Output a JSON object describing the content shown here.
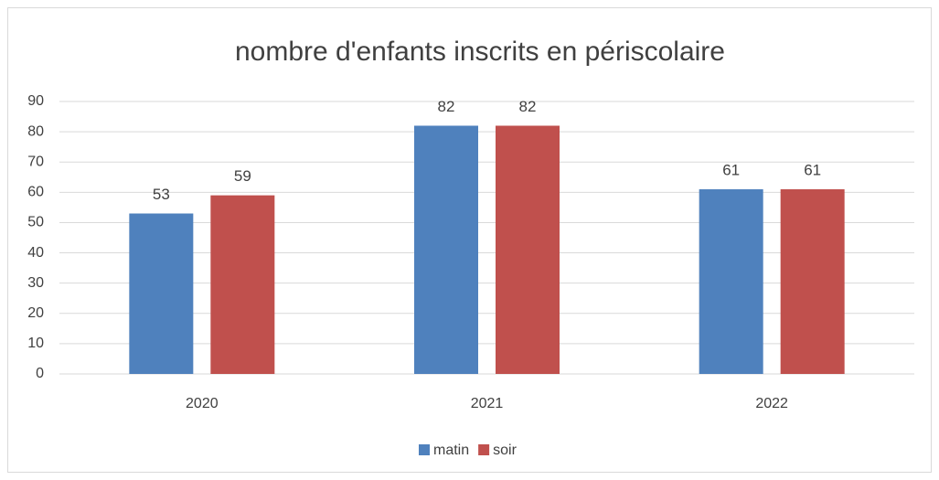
{
  "chart_data": {
    "type": "bar",
    "title": "nombre d'enfants inscrits en périscolaire",
    "categories": [
      "2020",
      "2021",
      "2022"
    ],
    "series": [
      {
        "name": "matin",
        "color": "#4f81bd",
        "values": [
          53,
          82,
          61
        ]
      },
      {
        "name": "soir",
        "color": "#c0504d",
        "values": [
          59,
          82,
          61
        ]
      }
    ],
    "ylim": [
      0,
      90
    ],
    "yticks": [
      0,
      10,
      20,
      30,
      40,
      50,
      60,
      70,
      80,
      90
    ],
    "grid": true,
    "legend": "bottom",
    "value_labels_shown": true
  }
}
